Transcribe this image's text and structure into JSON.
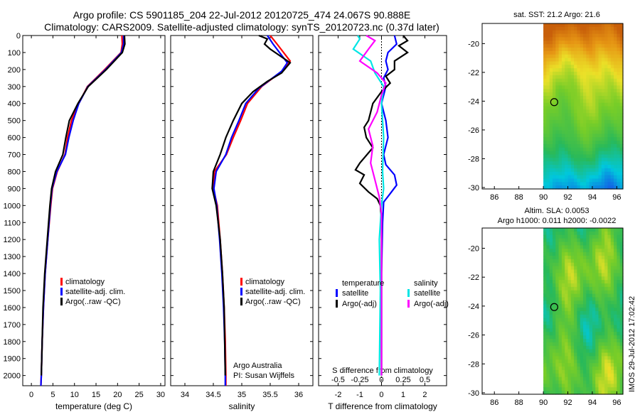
{
  "header": {
    "title_line1": "Argo profile: CS 5901185_204 22-Jul-2012 20120725_474 24.067S 90.888E",
    "title_line2": "Climatology: CARS2009. Satellite-adjusted climatology: synTS_20120723.nc (0.37d later)"
  },
  "colors": {
    "climatology": "#ff0000",
    "satellite": "#0000ff",
    "argo": "#000000",
    "satellite_salinity": "#00e5e5",
    "argo_salinity": "#ff00ff"
  },
  "depth_ticks": [
    "0",
    "100",
    "200",
    "300",
    "400",
    "500",
    "600",
    "700",
    "800",
    "900",
    "1000",
    "1100",
    "1200",
    "1300",
    "1400",
    "1500",
    "1600",
    "1700",
    "1800",
    "1900",
    "2000"
  ],
  "chart_data": [
    {
      "type": "line",
      "name": "temperature",
      "xlabel": "temperature (deg C)",
      "ylabel": "depth",
      "xlim": [
        -2,
        31
      ],
      "ylim": [
        2060,
        0
      ],
      "xticks": [
        "0",
        "5",
        "10",
        "15",
        "20",
        "25",
        "30"
      ],
      "xtick_values": [
        0,
        5,
        10,
        15,
        20,
        25,
        30
      ],
      "legend": [
        "climatology",
        "satellite-adj. clim.",
        "Argo(..raw -QC)"
      ],
      "series": [
        {
          "name": "climatology",
          "color": "#ff0000",
          "points": [
            [
              21.0,
              0
            ],
            [
              21.1,
              50
            ],
            [
              20.8,
              100
            ],
            [
              17,
              200
            ],
            [
              13,
              300
            ],
            [
              11,
              400
            ],
            [
              9.3,
              500
            ],
            [
              8.4,
              600
            ],
            [
              7.8,
              700
            ],
            [
              6,
              800
            ],
            [
              4.9,
              900
            ],
            [
              4.5,
              1000
            ],
            [
              3.8,
              1200
            ],
            [
              3.2,
              1400
            ],
            [
              2.8,
              1600
            ],
            [
              2.5,
              1800
            ],
            [
              2.3,
              2000
            ],
            [
              2.2,
              2060
            ]
          ]
        },
        {
          "name": "satellite",
          "color": "#0000ff",
          "points": [
            [
              21.4,
              0
            ],
            [
              21.4,
              50
            ],
            [
              20.9,
              100
            ],
            [
              17.2,
              200
            ],
            [
              13.1,
              300
            ],
            [
              11,
              400
            ],
            [
              9.7,
              500
            ],
            [
              8.7,
              600
            ],
            [
              7.9,
              700
            ],
            [
              5.9,
              800
            ],
            [
              4.8,
              900
            ],
            [
              4.4,
              1000
            ],
            [
              3.8,
              1200
            ],
            [
              3.2,
              1400
            ],
            [
              2.8,
              1600
            ],
            [
              2.5,
              1800
            ],
            [
              2.3,
              2000
            ],
            [
              2.2,
              2060
            ]
          ]
        },
        {
          "name": "Argo",
          "color": "#000000",
          "points": [
            [
              21.6,
              0
            ],
            [
              21.7,
              50
            ],
            [
              21.1,
              100
            ],
            [
              17.4,
              200
            ],
            [
              13.2,
              300
            ],
            [
              10.8,
              400
            ],
            [
              8.8,
              500
            ],
            [
              8.0,
              600
            ],
            [
              7.3,
              700
            ],
            [
              5.6,
              800
            ],
            [
              4.7,
              900
            ],
            [
              4.3,
              1000
            ],
            [
              3.7,
              1200
            ],
            [
              3.1,
              1400
            ],
            [
              2.7,
              1600
            ],
            [
              2.5,
              1800
            ],
            [
              2.3,
              2000
            ]
          ]
        }
      ]
    },
    {
      "type": "line",
      "name": "salinity",
      "xlabel": "salinity",
      "ylabel": "depth",
      "xlim": [
        33.75,
        36.25
      ],
      "ylim": [
        2060,
        0
      ],
      "xticks": [
        "34",
        "34.5",
        "35",
        "35.5",
        "36"
      ],
      "xtick_values": [
        34,
        34.5,
        35,
        35.5,
        36
      ],
      "legend": [
        "climatology",
        "satellite-adj. clim.",
        "Argo(..raw -QC)"
      ],
      "annotation_lines": [
        "Argo Australia",
        "PI: Susan Wijffels"
      ],
      "series": [
        {
          "name": "climatology",
          "color": "#ff0000",
          "points": [
            [
              35.5,
              0
            ],
            [
              35.62,
              50
            ],
            [
              35.85,
              150
            ],
            [
              35.75,
              200
            ],
            [
              35.55,
              250
            ],
            [
              35.35,
              300
            ],
            [
              35.1,
              400
            ],
            [
              34.98,
              500
            ],
            [
              34.85,
              600
            ],
            [
              34.73,
              700
            ],
            [
              34.52,
              800
            ],
            [
              34.5,
              900
            ],
            [
              34.57,
              1000
            ],
            [
              34.62,
              1200
            ],
            [
              34.66,
              1400
            ],
            [
              34.69,
              1600
            ],
            [
              34.71,
              1800
            ],
            [
              34.72,
              2000
            ],
            [
              34.72,
              2060
            ]
          ]
        },
        {
          "name": "satellite",
          "color": "#0000ff",
          "points": [
            [
              35.45,
              0
            ],
            [
              35.55,
              50
            ],
            [
              35.8,
              160
            ],
            [
              35.7,
              210
            ],
            [
              35.5,
              260
            ],
            [
              35.3,
              310
            ],
            [
              35.07,
              400
            ],
            [
              34.95,
              500
            ],
            [
              34.82,
              600
            ],
            [
              34.72,
              700
            ],
            [
              34.55,
              800
            ],
            [
              34.51,
              900
            ],
            [
              34.56,
              1000
            ],
            [
              34.61,
              1200
            ],
            [
              34.65,
              1400
            ],
            [
              34.68,
              1600
            ],
            [
              34.7,
              1800
            ],
            [
              34.71,
              2000
            ],
            [
              34.71,
              2060
            ]
          ]
        },
        {
          "name": "Argo",
          "color": "#000000",
          "points": [
            [
              35.3,
              0
            ],
            [
              35.45,
              20
            ],
            [
              35.4,
              50
            ],
            [
              35.5,
              80
            ],
            [
              35.85,
              160
            ],
            [
              35.7,
              220
            ],
            [
              35.45,
              270
            ],
            [
              35.2,
              330
            ],
            [
              35.0,
              400
            ],
            [
              34.85,
              500
            ],
            [
              34.72,
              600
            ],
            [
              34.62,
              700
            ],
            [
              34.5,
              800
            ],
            [
              34.48,
              900
            ],
            [
              34.55,
              1000
            ],
            [
              34.62,
              1200
            ],
            [
              34.66,
              1400
            ],
            [
              34.69,
              1600
            ],
            [
              34.7,
              1800
            ],
            [
              34.71,
              2000
            ]
          ]
        }
      ]
    },
    {
      "type": "line",
      "name": "differences",
      "xlabel": "T difference from climatology",
      "xlabel_top": "S difference from climatology",
      "ylabel": "depth",
      "xlim": [
        -2.9,
        3.0
      ],
      "ylim": [
        2060,
        0
      ],
      "xticks": [
        "-2",
        "-1",
        "0",
        "1",
        "2"
      ],
      "xtick_values": [
        -2,
        -1,
        0,
        1,
        2
      ],
      "sticks": [
        "-0.5",
        "-0.25",
        "0",
        "0.25",
        "0.5"
      ],
      "stick_positions": [
        -2,
        -1,
        0,
        1,
        2
      ],
      "legend_temperature_title": "temperature",
      "legend_salinity_title": "salinity",
      "legend_temperature": [
        "satellite",
        "Argo(-adj)"
      ],
      "legend_salinity": [
        "satellite",
        "Argo(-adj)"
      ],
      "series": [
        {
          "name": "T satellite",
          "color": "#0000ff",
          "points": [
            [
              0.6,
              0
            ],
            [
              0.7,
              50
            ],
            [
              0.3,
              100
            ],
            [
              0.2,
              150
            ],
            [
              0.3,
              200
            ],
            [
              0.1,
              250
            ],
            [
              0.2,
              300
            ],
            [
              0.0,
              400
            ],
            [
              0.2,
              500
            ],
            [
              0.3,
              600
            ],
            [
              0.1,
              700
            ],
            [
              0.2,
              760
            ],
            [
              0.6,
              820
            ],
            [
              0.7,
              880
            ],
            [
              0.4,
              930
            ],
            [
              0.1,
              980
            ],
            [
              0.05,
              1100
            ],
            [
              0.0,
              1400
            ],
            [
              0.0,
              2000
            ]
          ]
        },
        {
          "name": "T Argo",
          "color": "#000000",
          "points": [
            [
              1.0,
              0
            ],
            [
              1.2,
              30
            ],
            [
              0.8,
              60
            ],
            [
              1.2,
              100
            ],
            [
              0.6,
              150
            ],
            [
              0.6,
              200
            ],
            [
              0.2,
              240
            ],
            [
              0.4,
              280
            ],
            [
              0.0,
              330
            ],
            [
              -0.4,
              400
            ],
            [
              -0.6,
              500
            ],
            [
              -0.8,
              540
            ],
            [
              -0.7,
              600
            ],
            [
              -0.4,
              660
            ],
            [
              -1.0,
              750
            ],
            [
              -1.2,
              790
            ],
            [
              -0.8,
              820
            ],
            [
              -1.0,
              870
            ],
            [
              -0.6,
              920
            ],
            [
              -0.2,
              960
            ],
            [
              -0.05,
              1000
            ],
            [
              0.0,
              1100
            ],
            [
              0.0,
              2000
            ]
          ]
        },
        {
          "name": "S satellite",
          "color": "#00e5e5",
          "points": [
            [
              -1.1,
              0
            ],
            [
              -1.0,
              20
            ],
            [
              -1.3,
              80
            ],
            [
              -0.5,
              150
            ],
            [
              -0.3,
              220
            ],
            [
              0.1,
              300
            ],
            [
              0.0,
              400
            ],
            [
              0.1,
              600
            ],
            [
              0.05,
              800
            ],
            [
              0.1,
              900
            ],
            [
              0.0,
              1000
            ],
            [
              -0.1,
              1200
            ],
            [
              -0.05,
              1500
            ],
            [
              -0.1,
              2000
            ]
          ]
        },
        {
          "name": "S Argo",
          "color": "#ff00ff",
          "points": [
            [
              -0.7,
              0
            ],
            [
              -0.3,
              30
            ],
            [
              -0.6,
              80
            ],
            [
              -1.0,
              150
            ],
            [
              -0.2,
              220
            ],
            [
              0.2,
              280
            ],
            [
              0.0,
              350
            ],
            [
              -0.2,
              450
            ],
            [
              -0.6,
              550
            ],
            [
              -0.4,
              650
            ],
            [
              -0.5,
              750
            ],
            [
              -0.3,
              850
            ],
            [
              -0.1,
              950
            ],
            [
              0.0,
              1050
            ],
            [
              0.0,
              2000
            ]
          ]
        }
      ]
    }
  ],
  "sst_map": {
    "title": "sat. SST: 21.2 Argo: 21.6",
    "xticks": [
      "86",
      "88",
      "90",
      "92",
      "94",
      "96"
    ],
    "yticks": [
      "-20",
      "-22",
      "-24",
      "-26",
      "-28",
      "-30"
    ],
    "xtick_values": [
      86,
      88,
      90,
      92,
      94,
      96
    ],
    "ytick_values": [
      -20,
      -22,
      -24,
      -26,
      -28,
      -30
    ],
    "lon_range": [
      85,
      96.5
    ],
    "lat_range": [
      -30.1,
      -18.6
    ],
    "data_lon_start": 90.0,
    "marker": {
      "lon": 90.888,
      "lat": -24.067
    }
  },
  "sla_map": {
    "title_line1": "Altim. SLA: 0.0053",
    "title_line2": "Argo h1000: 0.011 h2000: -0.0022",
    "xticks": [
      "86",
      "88",
      "90",
      "92",
      "94",
      "96"
    ],
    "yticks": [
      "-20",
      "-22",
      "-24",
      "-26",
      "-28",
      "-30"
    ],
    "xtick_values": [
      86,
      88,
      90,
      92,
      94,
      96
    ],
    "ytick_values": [
      -20,
      -22,
      -24,
      -26,
      -28,
      -30
    ],
    "lon_range": [
      85,
      96.5
    ],
    "lat_range": [
      -30.1,
      -18.6
    ],
    "data_lon_start": 90.0,
    "marker": {
      "lon": 90.888,
      "lat": -24.067
    }
  },
  "footer": {
    "timestamp": "IMOS 29-Jul-2012 17:02:42"
  }
}
